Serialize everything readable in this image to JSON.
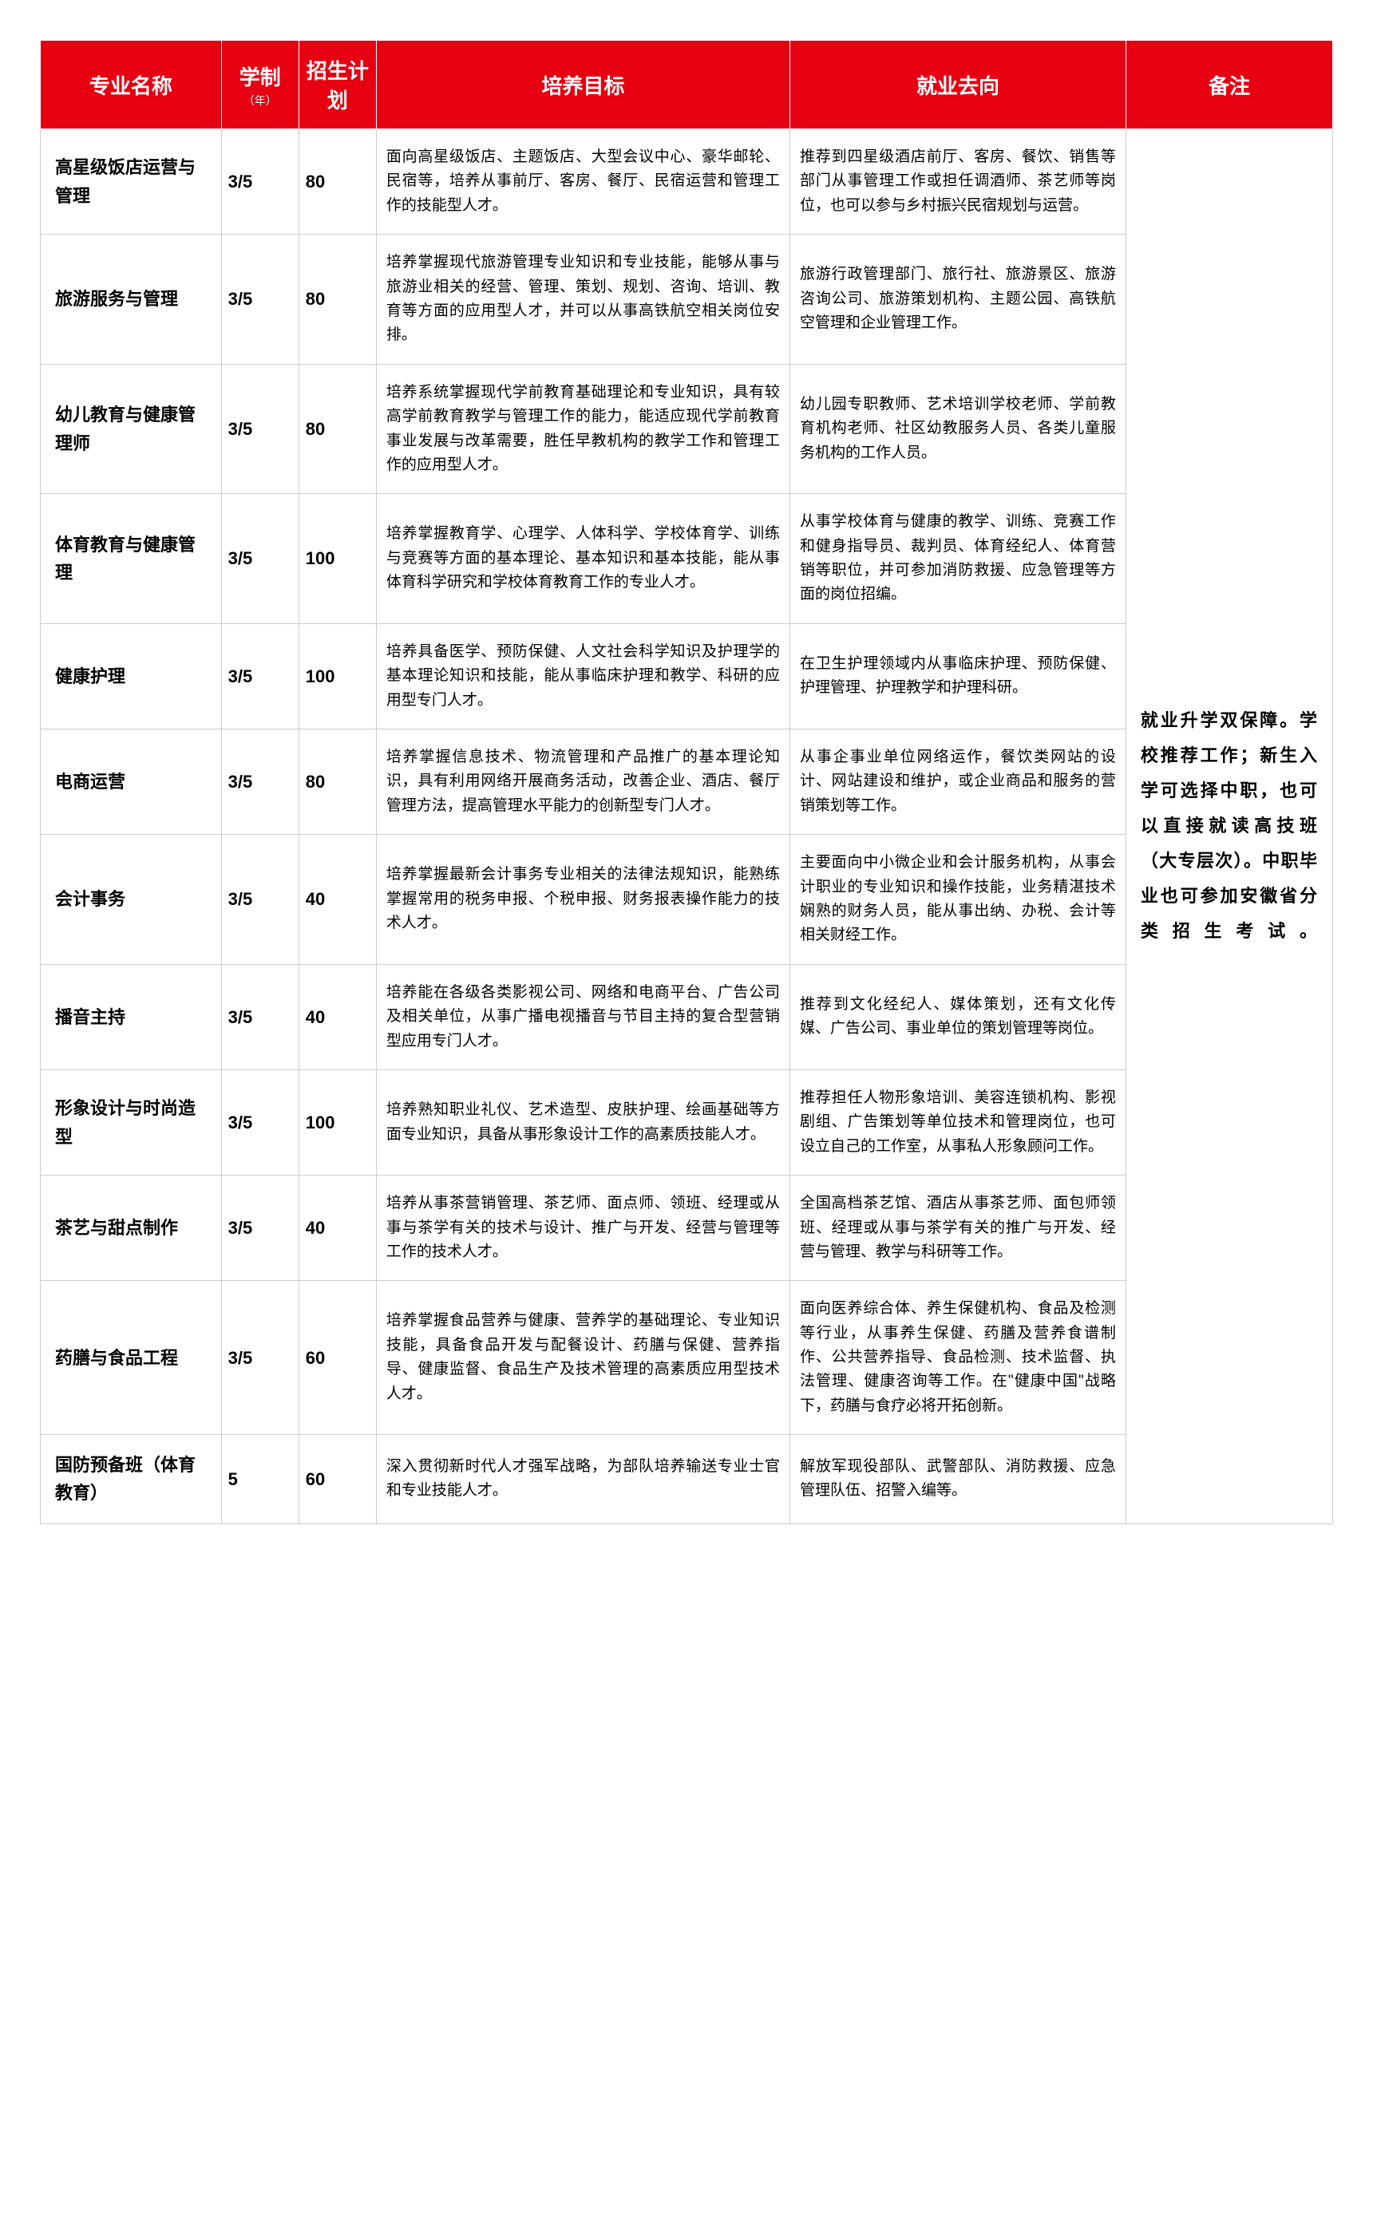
{
  "table": {
    "header_bg": "#e60012",
    "header_color": "#ffffff",
    "border_color": "#cccccc",
    "columns": [
      {
        "key": "major",
        "label": "专业名称",
        "sub": ""
      },
      {
        "key": "duration",
        "label": "学制",
        "sub": "（年）"
      },
      {
        "key": "quota",
        "label": "招生计划",
        "sub": ""
      },
      {
        "key": "goal",
        "label": "培养目标",
        "sub": ""
      },
      {
        "key": "career",
        "label": "就业去向",
        "sub": ""
      },
      {
        "key": "remark",
        "label": "备注",
        "sub": ""
      }
    ],
    "rows": [
      {
        "major": "高星级饭店运营与管理",
        "duration": "3/5",
        "quota": "80",
        "goal": "面向高星级饭店、主题饭店、大型会议中心、豪华邮轮、民宿等，培养从事前厅、客房、餐厅、民宿运营和管理工作的技能型人才。",
        "career": "推荐到四星级酒店前厅、客房、餐饮、销售等部门从事管理工作或担任调酒师、茶艺师等岗位，也可以参与乡村振兴民宿规划与运营。"
      },
      {
        "major": "旅游服务与管理",
        "duration": "3/5",
        "quota": "80",
        "goal": "培养掌握现代旅游管理专业知识和专业技能，能够从事与旅游业相关的经营、管理、策划、规划、咨询、培训、教育等方面的应用型人才，并可以从事高铁航空相关岗位安排。",
        "career": "旅游行政管理部门、旅行社、旅游景区、旅游咨询公司、旅游策划机构、主题公园、高铁航空管理和企业管理工作。"
      },
      {
        "major": "幼儿教育与健康管理师",
        "duration": "3/5",
        "quota": "80",
        "goal": "培养系统掌握现代学前教育基础理论和专业知识，具有较高学前教育教学与管理工作的能力，能适应现代学前教育事业发展与改革需要，胜任早教机构的教学工作和管理工作的应用型人才。",
        "career": "幼儿园专职教师、艺术培训学校老师、学前教育机构老师、社区幼教服务人员、各类儿童服务机构的工作人员。"
      },
      {
        "major": "体育教育与健康管理",
        "duration": "3/5",
        "quota": "100",
        "goal": "培养掌握教育学、心理学、人体科学、学校体育学、训练与竞赛等方面的基本理论、基本知识和基本技能，能从事体育科学研究和学校体育教育工作的专业人才。",
        "career": "从事学校体育与健康的教学、训练、竞赛工作和健身指导员、裁判员、体育经纪人、体育营销等职位，并可参加消防救援、应急管理等方面的岗位招编。"
      },
      {
        "major": "健康护理",
        "duration": "3/5",
        "quota": "100",
        "goal": "培养具备医学、预防保健、人文社会科学知识及护理学的基本理论知识和技能，能从事临床护理和教学、科研的应用型专门人才。",
        "career": "在卫生护理领域内从事临床护理、预防保健、护理管理、护理教学和护理科研。"
      },
      {
        "major": "电商运营",
        "duration": "3/5",
        "quota": "80",
        "goal": "培养掌握信息技术、物流管理和产品推广的基本理论知识，具有利用网络开展商务活动，改善企业、酒店、餐厅管理方法，提高管理水平能力的创新型专门人才。",
        "career": "从事企事业单位网络运作，餐饮类网站的设计、网站建设和维护，或企业商品和服务的营销策划等工作。"
      },
      {
        "major": "会计事务",
        "duration": "3/5",
        "quota": "40",
        "goal": "培养掌握最新会计事务专业相关的法律法规知识，能熟练掌握常用的税务申报、个税申报、财务报表操作能力的技术人才。",
        "career": "主要面向中小微企业和会计服务机构，从事会计职业的专业知识和操作技能，业务精湛技术娴熟的财务人员，能从事出纳、办税、会计等相关财经工作。"
      },
      {
        "major": "播音主持",
        "duration": "3/5",
        "quota": "40",
        "goal": "培养能在各级各类影视公司、网络和电商平台、广告公司及相关单位，从事广播电视播音与节目主持的复合型营销型应用专门人才。",
        "career": "推荐到文化经纪人、媒体策划，还有文化传媒、广告公司、事业单位的策划管理等岗位。"
      },
      {
        "major": "形象设计与时尚造型",
        "duration": "3/5",
        "quota": "100",
        "goal": "培养熟知职业礼仪、艺术造型、皮肤护理、绘画基础等方面专业知识，具备从事形象设计工作的高素质技能人才。",
        "career": "推荐担任人物形象培训、美容连锁机构、影视剧组、广告策划等单位技术和管理岗位，也可设立自己的工作室，从事私人形象顾问工作。"
      },
      {
        "major": "茶艺与甜点制作",
        "duration": "3/5",
        "quota": "40",
        "goal": "培养从事茶营销管理、茶艺师、面点师、领班、经理或从事与茶学有关的技术与设计、推广与开发、经营与管理等工作的技术人才。",
        "career": "全国高档茶艺馆、酒店从事茶艺师、面包师领班、经理或从事与茶学有关的推广与开发、经营与管理、教学与科研等工作。"
      },
      {
        "major": "药膳与食品工程",
        "duration": "3/5",
        "quota": "60",
        "goal": "培养掌握食品营养与健康、营养学的基础理论、专业知识技能，具备食品开发与配餐设计、药膳与保健、营养指导、健康监督、食品生产及技术管理的高素质应用型技术人才。",
        "career": "面向医养综合体、养生保健机构、食品及检测等行业，从事养生保健、药膳及营养食谱制作、公共营养指导、食品检测、技术监督、执法管理、健康咨询等工作。在\"健康中国\"战略下，药膳与食疗必将开拓创新。"
      },
      {
        "major": "国防预备班（体育教育）",
        "duration": "5",
        "quota": "60",
        "goal": "深入贯彻新时代人才强军战略，为部队培养输送专业士官和专业技能人才。",
        "career": "解放军现役部队、武警部队、消防救援、应急管理队伍、招警入编等。"
      }
    ],
    "remark_text": "就业升学双保障。学校推荐工作；新生入学可选择中职，也可以直接就读高技班（大专层次）。中职毕业也可参加安徽省分类招生考试。"
  }
}
